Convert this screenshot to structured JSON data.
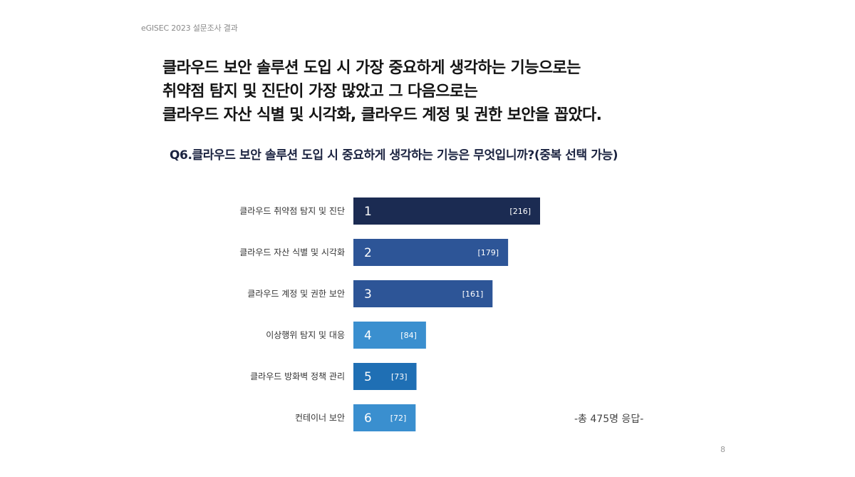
{
  "header_tag": "eGISEC 2023 설문조사 결과",
  "headline": [
    "클라우드 보안 솔루션 도입 시 가장 중요하게 생각하는 기능으로는",
    "취약점 탐지 및 진단이 가장 많았고 그 다음으로는",
    "클라우드 자산 식별 및 시각화, 클라우드 계정 및 권한 보안을 꼽았다."
  ],
  "question": "Q6.클라우드 보안 솔루션 도입 시 중요하게 생각하는 기능은 무엇입니까?(중복 선택 가능)",
  "respondents": "-총 475명 응답-",
  "page_number": "8",
  "chart_data": {
    "type": "bar",
    "orientation": "horizontal",
    "categories": [
      "클라우드 취약점 탐지 및 진단",
      "클라우드 자산 식별 및 시각화",
      "클라우드 계정 및 권한 보안",
      "이상행위 탐지 및 대응",
      "클라우드 방화벽 정책 관리",
      "컨테이너 보안"
    ],
    "ranks": [
      "1",
      "2",
      "3",
      "4",
      "5",
      "6"
    ],
    "values": [
      216,
      179,
      161,
      84,
      73,
      72
    ],
    "value_labels": [
      "[216]",
      "[179]",
      "[161]",
      "[84]",
      "[73]",
      "[72]"
    ],
    "colors": [
      "#1b2b52",
      "#2d5597",
      "#2d5597",
      "#3a8fcf",
      "#1f6fb4",
      "#3a8fcf"
    ],
    "title": "",
    "xlabel": "",
    "ylabel": "",
    "grid": false,
    "legend": "none"
  }
}
